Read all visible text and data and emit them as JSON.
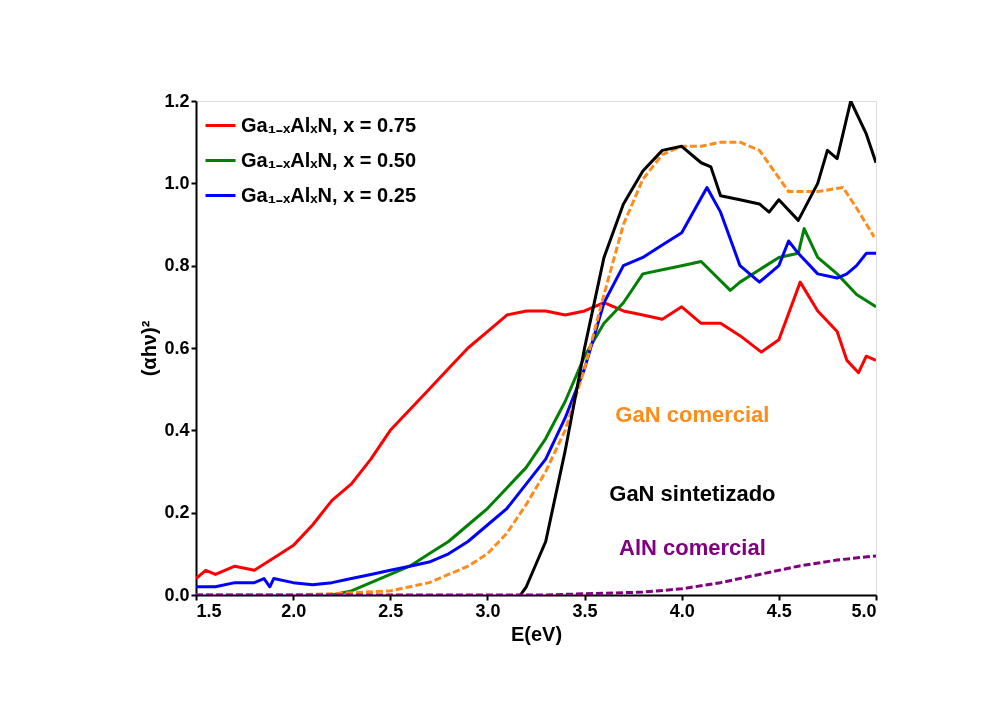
{
  "chart_data": {
    "type": "line",
    "xlabel": "E(eV)",
    "ylabel": "(αhν)²",
    "legend": "top left",
    "line_style": "solid",
    "xlim": [
      1.5,
      5.0
    ],
    "ylim": [
      0,
      1.2
    ],
    "xticks": [
      {
        "value": 1.5,
        "label": "1.5"
      },
      {
        "value": 2,
        "label": "2.0"
      },
      {
        "value": 2.5,
        "label": "2.5"
      },
      {
        "value": 3,
        "label": "3.0"
      },
      {
        "value": 3.5,
        "label": "3.5"
      },
      {
        "value": 4,
        "label": "4.0"
      },
      {
        "value": 4.5,
        "label": "4.5"
      },
      {
        "value": 5,
        "label": "5.0"
      }
    ],
    "yticks": [
      {
        "value": 0,
        "label": "0.0"
      },
      {
        "value": 0.2,
        "label": "0.2"
      },
      {
        "value": 0.4,
        "label": "0.4"
      },
      {
        "value": 0.6,
        "label": "0.6"
      },
      {
        "value": 0.8,
        "label": "0.8"
      },
      {
        "value": 1,
        "label": "1.0"
      },
      {
        "value": 1.2,
        "label": "1.2"
      }
    ],
    "series": [
      {
        "name": "Ga₁₋ₓAlₓN, x = 0.75",
        "color": "#ff0000",
        "x": [
          1.5,
          1.55,
          1.6,
          1.7,
          1.8,
          1.9,
          2.0,
          2.1,
          2.2,
          2.3,
          2.4,
          2.5,
          2.6,
          2.7,
          2.8,
          2.9,
          3.0,
          3.1,
          3.2,
          3.3,
          3.4,
          3.5,
          3.6,
          3.7,
          3.8,
          3.9,
          4.0,
          4.1,
          4.2,
          4.3,
          4.41,
          4.5,
          4.61,
          4.7,
          4.8,
          4.85,
          4.91,
          4.95,
          5.0
        ],
        "values": [
          0.04,
          0.06,
          0.05,
          0.07,
          0.06,
          0.09,
          0.12,
          0.17,
          0.23,
          0.27,
          0.33,
          0.4,
          0.45,
          0.5,
          0.55,
          0.6,
          0.64,
          0.68,
          0.69,
          0.69,
          0.68,
          0.69,
          0.71,
          0.69,
          0.68,
          0.67,
          0.7,
          0.66,
          0.66,
          0.63,
          0.59,
          0.62,
          0.76,
          0.69,
          0.64,
          0.57,
          0.54,
          0.58,
          0.57
        ]
      },
      {
        "name": "Ga₁₋ₓAlₓN, x = 0.50",
        "color": "#008000",
        "x": [
          2.2,
          2.3,
          2.4,
          2.5,
          2.6,
          2.7,
          2.8,
          2.9,
          3.0,
          3.1,
          3.2,
          3.3,
          3.4,
          3.5,
          3.6,
          3.7,
          3.8,
          3.9,
          4.0,
          4.1,
          4.25,
          4.3,
          4.4,
          4.5,
          4.6,
          4.63,
          4.7,
          4.8,
          4.9,
          5.0
        ],
        "values": [
          0.0,
          0.01,
          0.03,
          0.05,
          0.07,
          0.1,
          0.13,
          0.17,
          0.21,
          0.26,
          0.31,
          0.38,
          0.47,
          0.58,
          0.66,
          0.71,
          0.78,
          0.79,
          0.8,
          0.81,
          0.74,
          0.76,
          0.79,
          0.82,
          0.83,
          0.89,
          0.82,
          0.78,
          0.73,
          0.7
        ]
      },
      {
        "name": "Ga₁₋ₓAlₓN, x = 0.25",
        "color": "#0000ff",
        "x": [
          1.5,
          1.6,
          1.7,
          1.8,
          1.85,
          1.88,
          1.9,
          2.0,
          2.1,
          2.2,
          2.3,
          2.4,
          2.5,
          2.6,
          2.7,
          2.8,
          2.9,
          3.0,
          3.1,
          3.2,
          3.3,
          3.4,
          3.5,
          3.6,
          3.7,
          3.8,
          3.9,
          4.0,
          4.13,
          4.2,
          4.3,
          4.4,
          4.5,
          4.55,
          4.6,
          4.7,
          4.8,
          4.85,
          4.9,
          4.95,
          5.0
        ],
        "values": [
          0.02,
          0.02,
          0.03,
          0.03,
          0.04,
          0.02,
          0.04,
          0.03,
          0.025,
          0.03,
          0.04,
          0.05,
          0.06,
          0.07,
          0.08,
          0.1,
          0.13,
          0.17,
          0.21,
          0.27,
          0.33,
          0.43,
          0.55,
          0.71,
          0.8,
          0.82,
          0.85,
          0.88,
          0.99,
          0.93,
          0.8,
          0.76,
          0.8,
          0.86,
          0.83,
          0.78,
          0.77,
          0.78,
          0.8,
          0.83,
          0.83
        ]
      },
      {
        "name": "GaN comercial",
        "color": "#ff8c1a",
        "line_style": "dashed",
        "x": [
          1.5,
          2.0,
          2.2,
          2.5,
          2.7,
          2.9,
          3.0,
          3.1,
          3.2,
          3.3,
          3.4,
          3.5,
          3.6,
          3.7,
          3.8,
          3.9,
          4.0,
          4.1,
          4.2,
          4.3,
          4.4,
          4.55,
          4.7,
          4.83,
          4.9,
          4.99
        ],
        "values": [
          0.0,
          0.0,
          0.003,
          0.01,
          0.03,
          0.07,
          0.1,
          0.15,
          0.22,
          0.3,
          0.4,
          0.55,
          0.73,
          0.9,
          1.01,
          1.07,
          1.09,
          1.09,
          1.1,
          1.1,
          1.08,
          0.98,
          0.98,
          0.99,
          0.94,
          0.87
        ]
      },
      {
        "name": "GaN sintetizado",
        "color": "#000000",
        "x": [
          3.17,
          3.2,
          3.3,
          3.4,
          3.5,
          3.6,
          3.7,
          3.8,
          3.9,
          4.0,
          4.1,
          4.15,
          4.2,
          4.3,
          4.4,
          4.45,
          4.5,
          4.6,
          4.7,
          4.75,
          4.8,
          4.87,
          4.95,
          5.0
        ],
        "values": [
          0.0,
          0.02,
          0.13,
          0.35,
          0.6,
          0.82,
          0.95,
          1.03,
          1.08,
          1.09,
          1.05,
          1.04,
          0.97,
          0.96,
          0.95,
          0.93,
          0.96,
          0.91,
          1.0,
          1.08,
          1.06,
          1.2,
          1.12,
          1.05
        ]
      },
      {
        "name": "AlN comercial",
        "color": "#800080",
        "line_style": "dashed",
        "x": [
          1.5,
          3.3,
          3.5,
          3.8,
          4.0,
          4.2,
          4.4,
          4.6,
          4.8,
          5.0
        ],
        "values": [
          0.0,
          0.0,
          0.003,
          0.007,
          0.015,
          0.03,
          0.05,
          0.07,
          0.085,
          0.095
        ]
      }
    ]
  }
}
